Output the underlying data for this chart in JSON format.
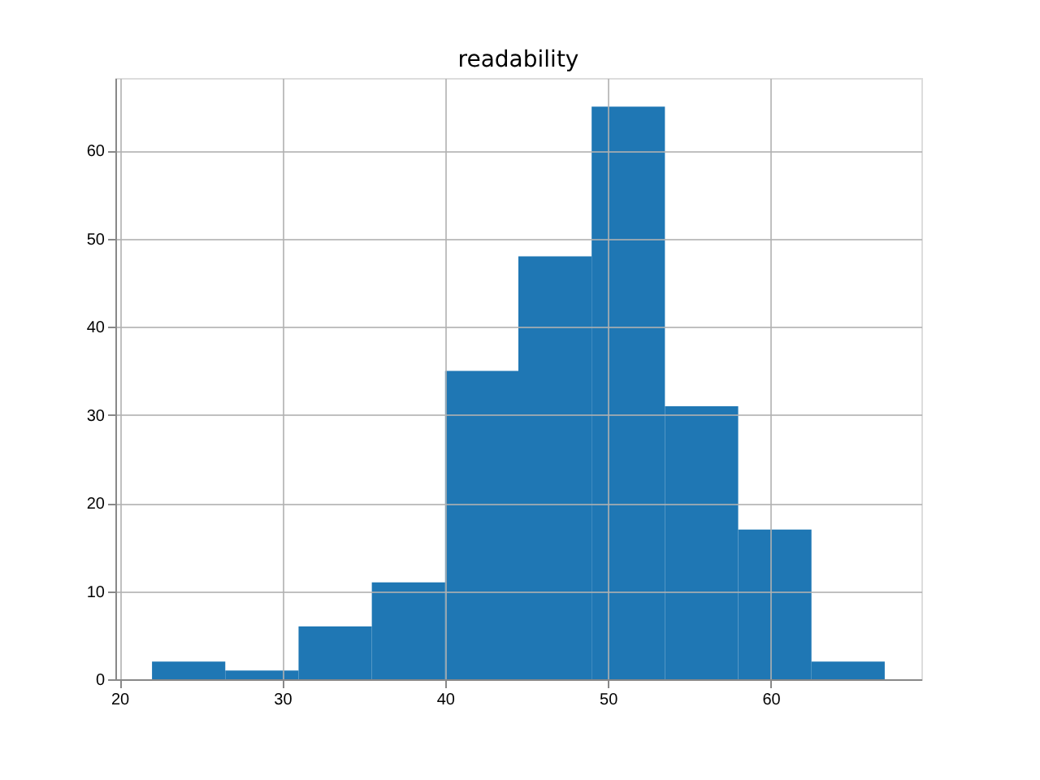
{
  "chart_data": {
    "type": "histogram",
    "title": "readability",
    "bins": [
      22,
      26.5,
      31,
      35.5,
      40,
      44.5,
      49,
      53.5,
      58,
      62.5,
      67
    ],
    "values": [
      2,
      1,
      6,
      11,
      35,
      48,
      65,
      31,
      17,
      2
    ],
    "color": "#1f77b4",
    "xlim": [
      19.75,
      69.25
    ],
    "xticks": [
      20,
      30,
      40,
      50,
      60
    ],
    "ylim": [
      0,
      68.25
    ],
    "yticks": [
      0,
      10,
      20,
      30,
      40,
      50,
      60
    ],
    "grid": true
  }
}
